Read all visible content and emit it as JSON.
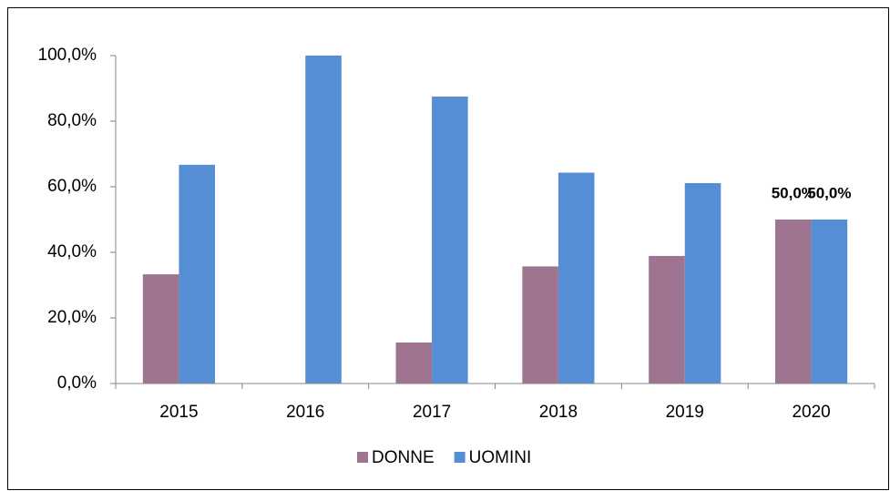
{
  "chart_data": {
    "type": "bar",
    "categories": [
      "2015",
      "2016",
      "2017",
      "2018",
      "2019",
      "2020"
    ],
    "series": [
      {
        "name": "DONNE",
        "color": "#9e7491",
        "values": [
          33.3,
          0,
          12.5,
          35.7,
          38.9,
          50.0
        ],
        "value_labels": [
          null,
          null,
          null,
          null,
          null,
          "50,0%"
        ]
      },
      {
        "name": "UOMINI",
        "color": "#558ed5",
        "values": [
          66.7,
          100,
          87.5,
          64.3,
          61.1,
          50.0
        ],
        "value_labels": [
          null,
          null,
          null,
          null,
          null,
          "50,0%"
        ]
      }
    ],
    "ylim": [
      0,
      100
    ],
    "yticks": [
      {
        "value": 0,
        "label": "0,0%"
      },
      {
        "value": 20,
        "label": "20,0%"
      },
      {
        "value": 40,
        "label": "40,0%"
      },
      {
        "value": 60,
        "label": "60,0%"
      },
      {
        "value": 80,
        "label": "80,0%"
      },
      {
        "value": 100,
        "label": "100,0%"
      }
    ],
    "grid": false,
    "legend": "bottom"
  }
}
